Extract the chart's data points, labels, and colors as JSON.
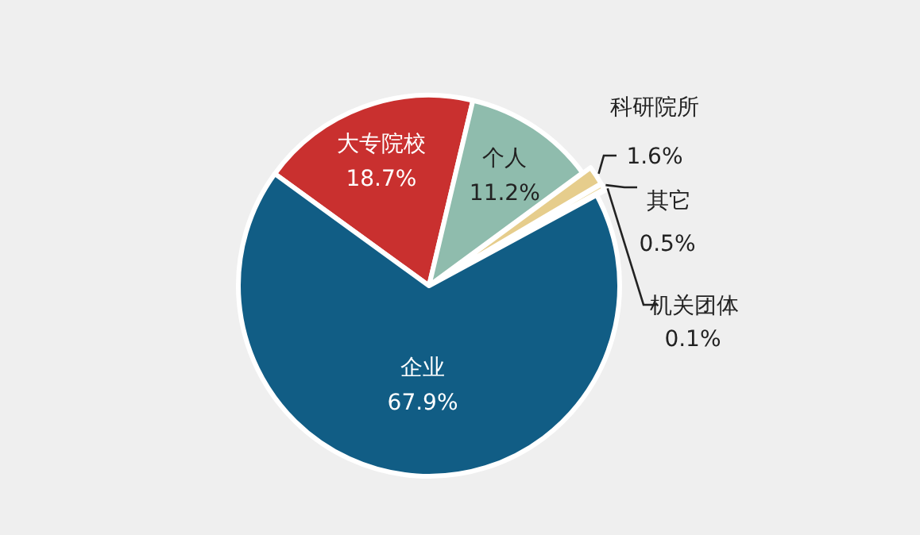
{
  "chart_data": {
    "type": "pie",
    "categories": [
      "企业",
      "大专院校",
      "个人",
      "科研院所",
      "其它",
      "机关团体"
    ],
    "values": [
      67.9,
      18.7,
      11.2,
      1.6,
      0.5,
      0.1
    ],
    "value_labels": [
      "67.9%",
      "18.7%",
      "11.2%",
      "1.6%",
      "0.5%",
      "0.1%"
    ],
    "colors": [
      "#115d85",
      "#c9302f",
      "#8fbcad",
      "#e6cd8c",
      "#eedca5",
      "#d8c690"
    ]
  }
}
